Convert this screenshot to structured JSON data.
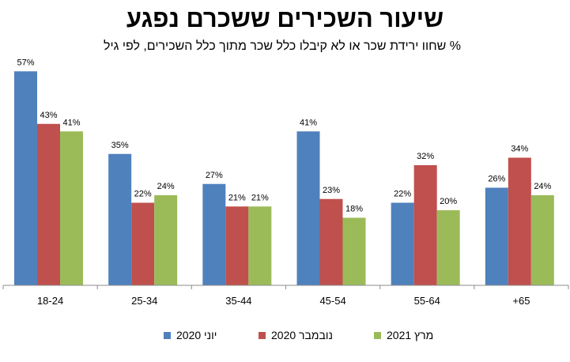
{
  "chart_data": {
    "type": "bar",
    "title": "שיעור השכירים ששכרם נפגע",
    "subtitle": "% שחוו ירידת שכר או לא קיבלו כלל שכר מתוך כלל השכירים, לפי גיל",
    "categories": [
      "18-24",
      "25-34",
      "35-44",
      "45-54",
      "55-64",
      "65+"
    ],
    "category_labels": [
      "18-24",
      "25-34",
      "35-44",
      "45-54",
      "55-64",
      "+65"
    ],
    "series": [
      {
        "name": "יוני 2020",
        "color": "#4F81BD",
        "values": [
          57,
          35,
          27,
          41,
          22,
          26
        ]
      },
      {
        "name": "נובמבר 2020",
        "color": "#C0504D",
        "values": [
          43,
          22,
          21,
          23,
          32,
          34
        ]
      },
      {
        "name": "מרץ 2021",
        "color": "#9BBB59",
        "values": [
          41,
          24,
          21,
          18,
          20,
          24
        ]
      }
    ],
    "value_suffix": "%",
    "ylim": [
      0,
      60
    ],
    "grid": false,
    "legend_position": "bottom",
    "xlabel": "",
    "ylabel": ""
  }
}
